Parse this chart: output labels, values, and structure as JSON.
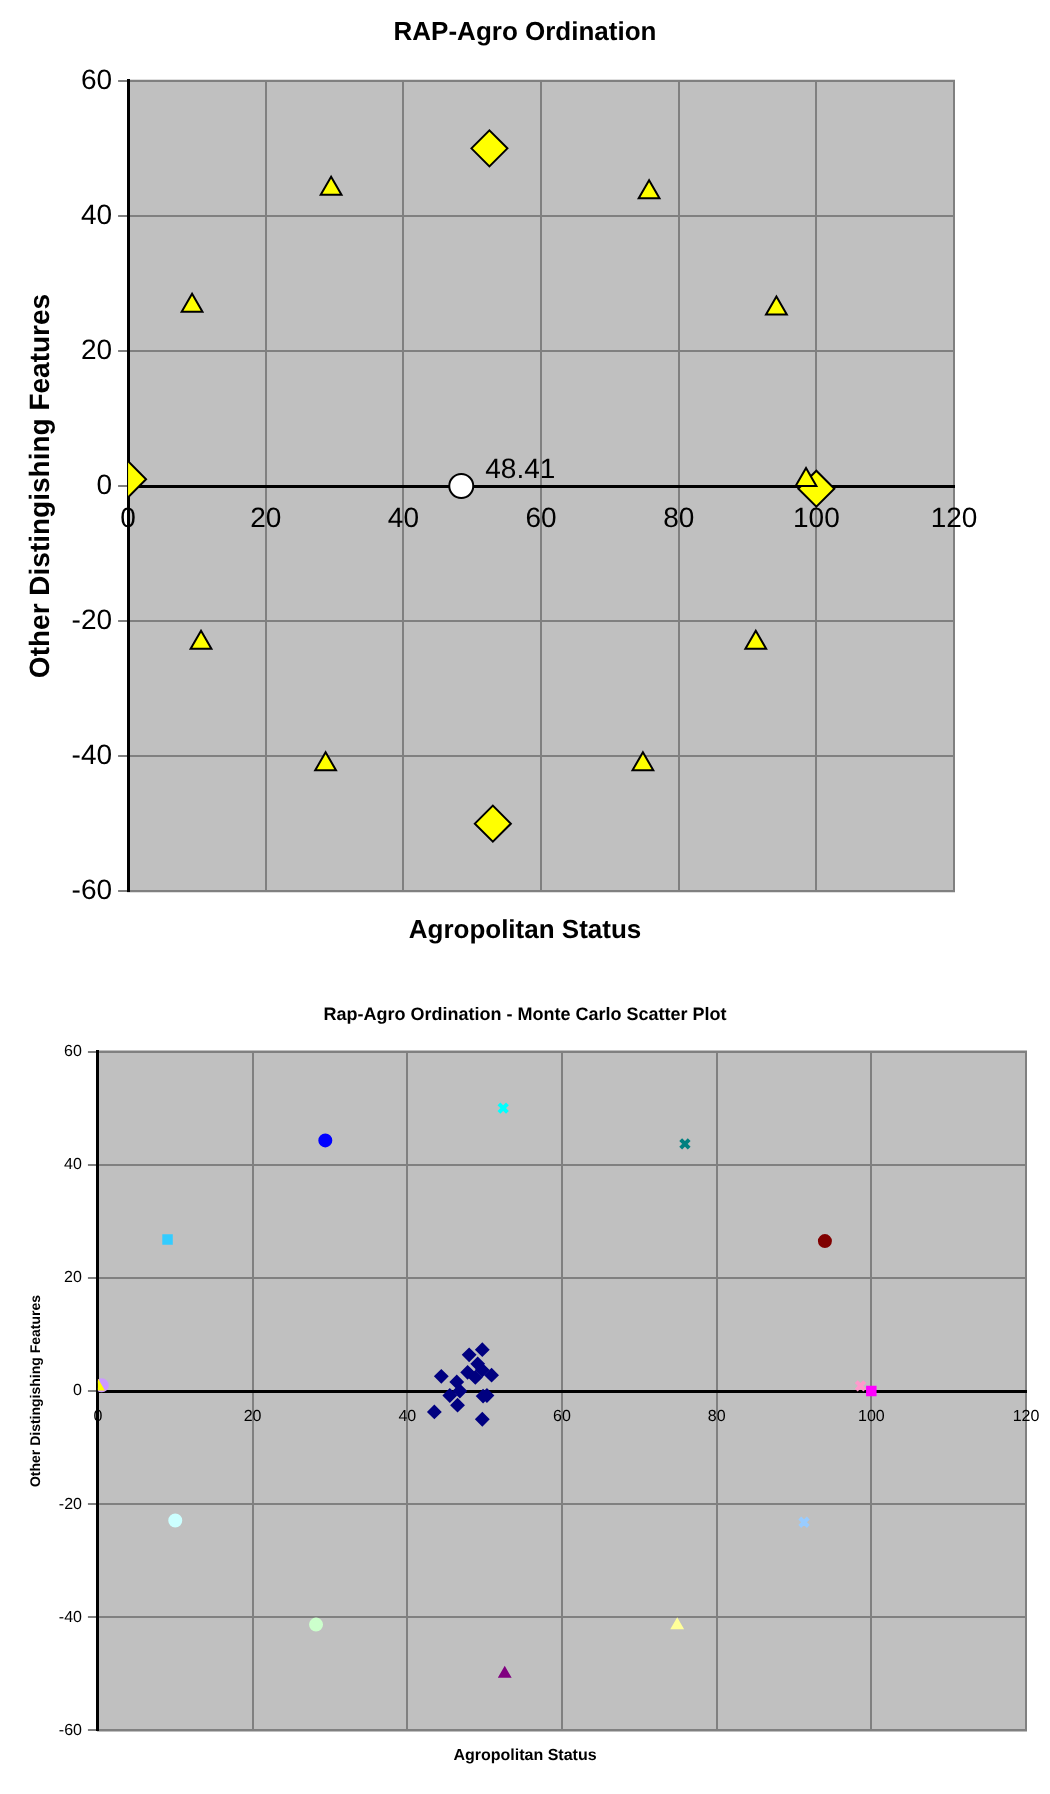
{
  "chart_data": [
    {
      "type": "scatter",
      "title": "RAP-Agro  Ordination",
      "xlabel": "Agropolitan Status",
      "ylabel": "Other Distingishing Features",
      "xlim": [
        0,
        120
      ],
      "xticks": [
        0,
        20,
        40,
        60,
        80,
        100,
        120
      ],
      "ylim": [
        -60,
        60
      ],
      "yticks": [
        -60,
        -40,
        -20,
        0,
        20,
        40,
        60
      ],
      "grid": true,
      "legend": false,
      "series": [
        {
          "color": "#ffff00",
          "marker": "triangle",
          "x": [
            9.3,
            29.5,
            75.7,
            94.2,
            98.5,
            91.2,
            74.8,
            28.7,
            10.6
          ],
          "values": [
            26.7,
            44,
            43.5,
            26.3,
            0.9,
            -23.2,
            -41.2,
            -41.2,
            -23.2
          ]
        },
        {
          "color": "#ffff00",
          "marker": "diamond",
          "x": [
            0,
            52.5,
            100,
            53
          ],
          "values": [
            1,
            50,
            -0.4,
            -50
          ]
        },
        {
          "color": "#ffffff",
          "marker": "circle",
          "x": [
            48.41
          ],
          "values": [
            0
          ]
        }
      ],
      "annotations": [
        {
          "text": "48.41",
          "x": 48.41,
          "y": 0
        }
      ]
    },
    {
      "type": "scatter",
      "title": "Rap-Agro Ordination - Monte Carlo Scatter Plot",
      "xlabel": "Agropolitan  Status",
      "ylabel": "Other Distingishing Features",
      "xlim": [
        0,
        120
      ],
      "xticks": [
        0,
        20,
        40,
        60,
        80,
        100,
        120
      ],
      "ylim": [
        -60,
        60
      ],
      "yticks": [
        -60,
        -40,
        -20,
        0,
        20,
        40,
        60
      ],
      "grid": true,
      "legend": false,
      "series": [
        {
          "color": "#000080",
          "marker": "diamond",
          "x": [
            49.7,
            48.0,
            44.4,
            47.3,
            48.5,
            49.1,
            49.7,
            50.9,
            48.8,
            46.4,
            46.8,
            45.5,
            49.8,
            50.3,
            46.5,
            43.5,
            49.7,
            47.8
          ],
          "values": [
            7.3,
            6.4,
            2.6,
            null,
            null,
            4.8,
            3.7,
            2.8,
            2.4,
            1.6,
            0,
            -0.8,
            -0.9,
            -0.8,
            -2.5,
            -3.7,
            -5.0,
            3.3
          ]
        },
        {
          "color": "#33ccff",
          "marker": "square",
          "x": [
            9.0
          ],
          "values": [
            26.8
          ]
        },
        {
          "color": "#0000ff",
          "marker": "circle",
          "x": [
            29.4
          ],
          "values": [
            44.3
          ]
        },
        {
          "color": "#00ffff",
          "marker": "cross",
          "x": [
            52.4
          ],
          "values": [
            50
          ]
        },
        {
          "color": "#008080",
          "marker": "cross",
          "x": [
            75.9
          ],
          "values": [
            43.7
          ]
        },
        {
          "color": "#800000",
          "marker": "circle",
          "x": [
            94.0
          ],
          "values": [
            26.5
          ]
        },
        {
          "color": "#ffff00",
          "marker": "triangle",
          "x": [
            0
          ],
          "values": [
            0.8
          ]
        },
        {
          "color": "#cc99ff",
          "marker": "circle",
          "x": [
            0.5
          ],
          "values": [
            1
          ]
        },
        {
          "color": "#ff99cc",
          "marker": "cross",
          "x": [
            98.6
          ],
          "values": [
            0.9
          ]
        },
        {
          "color": "#ff00ff",
          "marker": "square",
          "x": [
            100
          ],
          "values": [
            0
          ]
        },
        {
          "color": "#ccffff",
          "marker": "circle",
          "x": [
            10.0
          ],
          "values": [
            -22.9
          ]
        },
        {
          "color": "#ccffcc",
          "marker": "circle",
          "x": [
            28.2
          ],
          "values": [
            -41.3
          ]
        },
        {
          "color": "#800080",
          "marker": "triangle",
          "x": [
            52.6
          ],
          "values": [
            -50
          ]
        },
        {
          "color": "#ffff99",
          "marker": "triangle",
          "x": [
            74.9
          ],
          "values": [
            -41.4
          ]
        },
        {
          "color": "#99ccff",
          "marker": "cross",
          "x": [
            91.3
          ],
          "values": [
            -23.2
          ]
        }
      ]
    }
  ]
}
